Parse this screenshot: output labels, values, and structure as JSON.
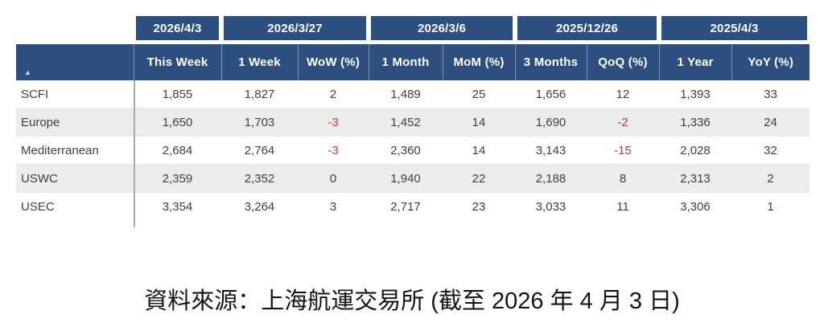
{
  "colors": {
    "header_bg": "#2D4F80",
    "header_text": "#FFFFFF",
    "body_text": "#3F3F3F",
    "negative_text": "#C23B34",
    "alt_row_bg": "#ECECEC",
    "row_border": "#E6E6E6",
    "divider": "#9FAFB5",
    "sort_icon": "#D6E0EF"
  },
  "header": {
    "sort_icon_glyph": "▲",
    "date_groups": [
      {
        "label": "2026/4/3",
        "span": 1
      },
      {
        "label": "2026/3/27",
        "span": 2
      },
      {
        "label": "2026/3/6",
        "span": 2
      },
      {
        "label": "2025/12/26",
        "span": 2
      },
      {
        "label": "2025/4/3",
        "span": 2
      }
    ],
    "columns": [
      "This Week",
      "1 Week",
      "WoW (%)",
      "1 Month",
      "MoM (%)",
      "3 Months",
      "QoQ (%)",
      "1 Year",
      "YoY (%)"
    ]
  },
  "table": {
    "rows": [
      {
        "label": "SCFI",
        "values": [
          "1,855",
          "1,827",
          "2",
          "1,489",
          "25",
          "1,656",
          "12",
          "1,393",
          "33"
        ]
      },
      {
        "label": "Europe",
        "values": [
          "1,650",
          "1,703",
          "-3",
          "1,452",
          "14",
          "1,690",
          "-2",
          "1,336",
          "24"
        ]
      },
      {
        "label": "Mediterranean",
        "values": [
          "2,684",
          "2,764",
          "-3",
          "2,360",
          "14",
          "3,143",
          "-15",
          "2,028",
          "32"
        ]
      },
      {
        "label": "USWC",
        "values": [
          "2,359",
          "2,352",
          "0",
          "1,940",
          "22",
          "2,188",
          "8",
          "2,313",
          "2"
        ]
      },
      {
        "label": "USEC",
        "values": [
          "3,354",
          "3,264",
          "3",
          "2,717",
          "23",
          "3,033",
          "11",
          "3,306",
          "1"
        ]
      }
    ]
  },
  "caption": "資料來源：上海航運交易所 (截至 2026 年 4 月 3 日)",
  "chart_data": {
    "type": "table",
    "column_groups": [
      {
        "label": "2026/4/3",
        "columns": [
          "This Week"
        ]
      },
      {
        "label": "2026/3/27",
        "columns": [
          "1 Week",
          "WoW (%)"
        ]
      },
      {
        "label": "2026/3/6",
        "columns": [
          "1 Month",
          "MoM (%)"
        ]
      },
      {
        "label": "2025/12/26",
        "columns": [
          "3 Months",
          "QoQ (%)"
        ]
      },
      {
        "label": "2025/4/3",
        "columns": [
          "1 Year",
          "YoY (%)"
        ]
      }
    ],
    "columns": [
      "This Week",
      "1 Week",
      "WoW (%)",
      "1 Month",
      "MoM (%)",
      "3 Months",
      "QoQ (%)",
      "1 Year",
      "YoY (%)"
    ],
    "rows": [
      {
        "label": "SCFI",
        "values": [
          1855,
          1827,
          2,
          1489,
          25,
          1656,
          12,
          1393,
          33
        ]
      },
      {
        "label": "Europe",
        "values": [
          1650,
          1703,
          -3,
          1452,
          14,
          1690,
          -2,
          1336,
          24
        ]
      },
      {
        "label": "Mediterranean",
        "values": [
          2684,
          2764,
          -3,
          2360,
          14,
          3143,
          -15,
          2028,
          32
        ]
      },
      {
        "label": "USWC",
        "values": [
          2359,
          2352,
          0,
          1940,
          22,
          2188,
          8,
          2313,
          2
        ]
      },
      {
        "label": "USEC",
        "values": [
          3354,
          3264,
          3,
          2717,
          23,
          3033,
          11,
          3306,
          1
        ]
      }
    ],
    "source_note": "資料來源：上海航運交易所 (截至 2026 年 4 月 3 日)"
  }
}
